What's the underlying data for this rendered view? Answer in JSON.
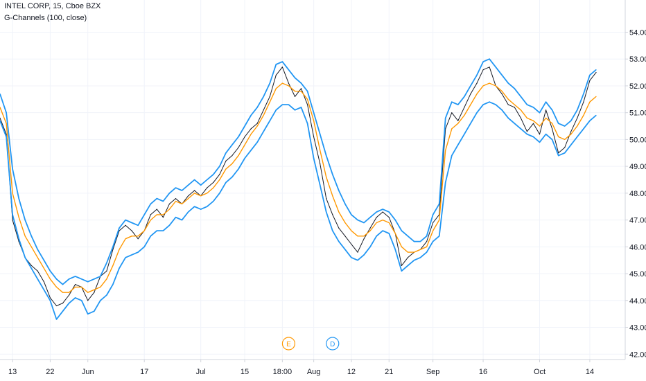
{
  "legend": {
    "symbol": "INTEL CORP, 15, Cboe BZX",
    "indicator": "G-Channels (100, close)"
  },
  "colors": {
    "price": "#131722",
    "upper_band": "#2196f3",
    "lower_band": "#2196f3",
    "mid_line": "#ff9800",
    "axis_text": "#131722",
    "grid": "#f0f3fa",
    "earnings_marker": "#ff9800",
    "dividend_marker": "#2196f3"
  },
  "events": [
    {
      "label": "E",
      "x_index": 46,
      "kind": "earnings"
    },
    {
      "label": "D",
      "x_index": 53,
      "kind": "dividend"
    }
  ],
  "chart_data": {
    "type": "line",
    "title": "",
    "xlabel": "",
    "ylabel": "",
    "ylim": [
      41.8,
      55.2
    ],
    "yticks": [
      "54.00",
      "53.00",
      "52.00",
      "51.00",
      "50.00",
      "49.00",
      "48.00",
      "47.00",
      "46.00",
      "45.00",
      "44.00",
      "43.00",
      "42.00"
    ],
    "xticks": [
      {
        "label": "13",
        "x_index": 2
      },
      {
        "label": "22",
        "x_index": 8
      },
      {
        "label": "Jun",
        "x_index": 14
      },
      {
        "label": "17",
        "x_index": 23
      },
      {
        "label": "Jul",
        "x_index": 32
      },
      {
        "label": "15",
        "x_index": 39
      },
      {
        "label": "18:00",
        "x_index": 45
      },
      {
        "label": "Aug",
        "x_index": 50
      },
      {
        "label": "12",
        "x_index": 56
      },
      {
        "label": "21",
        "x_index": 62
      },
      {
        "label": "Sep",
        "x_index": 69
      },
      {
        "label": "16",
        "x_index": 77
      },
      {
        "label": "Oct",
        "x_index": 86
      },
      {
        "label": "14",
        "x_index": 94
      }
    ],
    "grid": true,
    "legend_position": "top-left",
    "series": [
      {
        "key": "price",
        "values": [
          50.8,
          50.2,
          47.0,
          46.2,
          45.6,
          45.3,
          45.1,
          44.7,
          44.1,
          43.8,
          43.9,
          44.2,
          44.6,
          44.5,
          44.0,
          44.3,
          44.9,
          45.1,
          45.9,
          46.6,
          46.8,
          46.6,
          46.3,
          46.6,
          47.2,
          47.4,
          47.1,
          47.6,
          47.8,
          47.6,
          47.9,
          48.1,
          47.9,
          48.2,
          48.4,
          48.7,
          49.2,
          49.4,
          49.7,
          50.1,
          50.4,
          50.6,
          51.1,
          51.6,
          52.4,
          52.7,
          52.1,
          51.6,
          51.9,
          51.3,
          50.1,
          49.1,
          47.8,
          47.2,
          46.7,
          46.4,
          46.1,
          45.8,
          46.3,
          46.7,
          47.1,
          47.3,
          47.1,
          46.5,
          45.3,
          45.6,
          45.8,
          45.9,
          46.2,
          46.9,
          47.2,
          50.4,
          51.0,
          50.7,
          51.2,
          51.7,
          52.1,
          52.6,
          52.7,
          52.0,
          51.7,
          51.3,
          51.2,
          50.8,
          50.3,
          50.6,
          50.2,
          51.1,
          50.4,
          49.5,
          49.7,
          50.3,
          50.8,
          51.4,
          52.2,
          52.5
        ]
      },
      {
        "key": "upper_band",
        "values": [
          51.7,
          51.0,
          48.9,
          47.8,
          47.0,
          46.4,
          45.9,
          45.5,
          45.1,
          44.8,
          44.6,
          44.8,
          44.9,
          44.8,
          44.7,
          44.8,
          44.9,
          45.4,
          46.0,
          46.7,
          47.0,
          46.9,
          46.8,
          47.2,
          47.6,
          47.8,
          47.7,
          48.0,
          48.2,
          48.1,
          48.3,
          48.5,
          48.3,
          48.5,
          48.7,
          49.0,
          49.5,
          49.8,
          50.1,
          50.5,
          50.9,
          51.2,
          51.6,
          52.1,
          52.8,
          52.9,
          52.6,
          52.3,
          52.1,
          51.8,
          51.0,
          50.2,
          49.4,
          48.7,
          48.1,
          47.6,
          47.2,
          47.0,
          46.9,
          47.1,
          47.3,
          47.4,
          47.3,
          47.0,
          46.6,
          46.4,
          46.2,
          46.2,
          46.4,
          47.2,
          47.6,
          50.8,
          51.4,
          51.3,
          51.6,
          52.0,
          52.4,
          52.9,
          53.0,
          52.7,
          52.4,
          52.1,
          51.9,
          51.6,
          51.3,
          51.2,
          51.0,
          51.4,
          51.1,
          50.6,
          50.5,
          50.7,
          51.1,
          51.7,
          52.4,
          52.6
        ]
      },
      {
        "key": "mid_line",
        "values": [
          51.2,
          50.6,
          48.0,
          47.1,
          46.4,
          46.0,
          45.6,
          45.2,
          44.8,
          44.5,
          44.3,
          44.3,
          44.5,
          44.5,
          44.3,
          44.4,
          44.5,
          44.8,
          45.3,
          45.9,
          46.3,
          46.4,
          46.4,
          46.6,
          47.0,
          47.2,
          47.2,
          47.4,
          47.7,
          47.6,
          47.8,
          48.0,
          47.9,
          48.0,
          48.2,
          48.5,
          48.9,
          49.1,
          49.4,
          49.8,
          50.2,
          50.5,
          50.9,
          51.4,
          51.9,
          52.1,
          52.0,
          51.8,
          51.8,
          51.5,
          50.7,
          49.6,
          48.6,
          47.9,
          47.3,
          46.9,
          46.6,
          46.4,
          46.4,
          46.6,
          46.9,
          47.0,
          46.9,
          46.5,
          46.0,
          45.8,
          45.8,
          45.9,
          46.0,
          46.6,
          47.0,
          49.6,
          50.4,
          50.6,
          50.9,
          51.3,
          51.7,
          52.0,
          52.1,
          52.0,
          51.8,
          51.5,
          51.3,
          51.1,
          50.8,
          50.7,
          50.5,
          50.8,
          50.6,
          50.1,
          50.0,
          50.2,
          50.5,
          50.9,
          51.4,
          51.6
        ]
      },
      {
        "key": "lower_band",
        "values": [
          50.7,
          50.1,
          47.2,
          46.3,
          45.6,
          45.2,
          44.8,
          44.4,
          44.0,
          43.3,
          43.6,
          43.9,
          44.1,
          44.0,
          43.5,
          43.6,
          44.0,
          44.2,
          44.6,
          45.2,
          45.6,
          45.7,
          45.8,
          46.0,
          46.4,
          46.6,
          46.6,
          46.8,
          47.1,
          47.0,
          47.3,
          47.5,
          47.4,
          47.5,
          47.7,
          48.0,
          48.4,
          48.6,
          48.9,
          49.3,
          49.6,
          49.9,
          50.3,
          50.7,
          51.1,
          51.3,
          51.3,
          51.1,
          51.2,
          50.6,
          49.3,
          48.3,
          47.3,
          46.6,
          46.2,
          45.9,
          45.6,
          45.5,
          45.7,
          46.0,
          46.4,
          46.6,
          46.5,
          45.9,
          45.1,
          45.3,
          45.5,
          45.6,
          45.8,
          46.2,
          46.4,
          48.4,
          49.4,
          49.8,
          50.2,
          50.6,
          51.0,
          51.3,
          51.4,
          51.3,
          51.1,
          50.8,
          50.6,
          50.4,
          50.2,
          50.1,
          49.9,
          50.2,
          50.0,
          49.4,
          49.5,
          49.8,
          50.1,
          50.4,
          50.7,
          50.9
        ]
      }
    ]
  }
}
